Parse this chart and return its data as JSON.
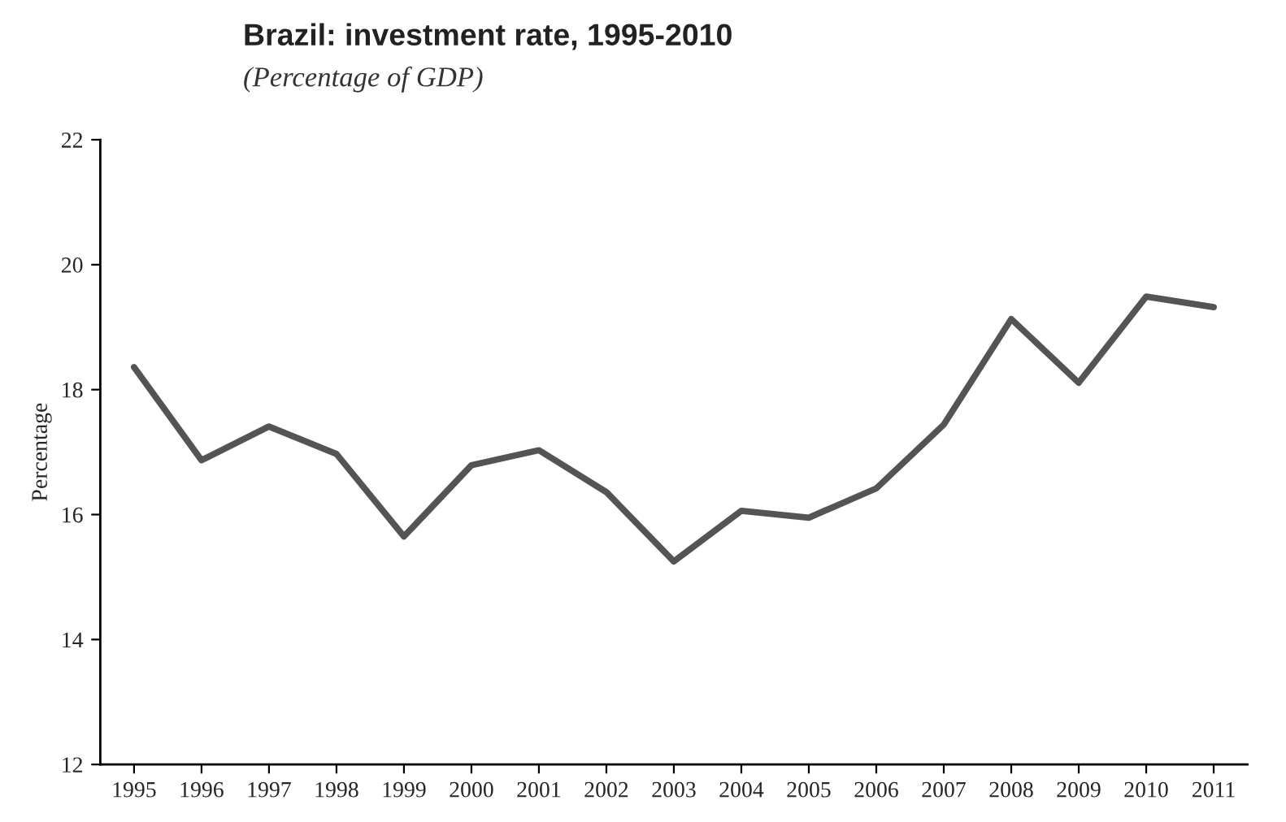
{
  "chart_data": {
    "type": "line",
    "title": "Brazil: investment rate, 1995-2010",
    "subtitle": "(Percentage of GDP)",
    "ylabel": "Percentage",
    "categories": [
      "1995",
      "1996",
      "1997",
      "1998",
      "1999",
      "2000",
      "2001",
      "2002",
      "2003",
      "2004",
      "2005",
      "2006",
      "2007",
      "2008",
      "2009",
      "2010",
      "2011"
    ],
    "series": [
      {
        "color": "#545454",
        "values": [
          18.36,
          16.87,
          17.41,
          16.97,
          15.65,
          16.79,
          17.03,
          16.36,
          15.25,
          16.06,
          15.95,
          16.42,
          17.44,
          19.13,
          18.11,
          19.49,
          19.32
        ]
      }
    ],
    "ylim": [
      12,
      22
    ],
    "yticks": [
      12,
      14,
      16,
      18,
      20,
      22
    ],
    "grid": false,
    "marker": "none",
    "line_style": "solid"
  }
}
